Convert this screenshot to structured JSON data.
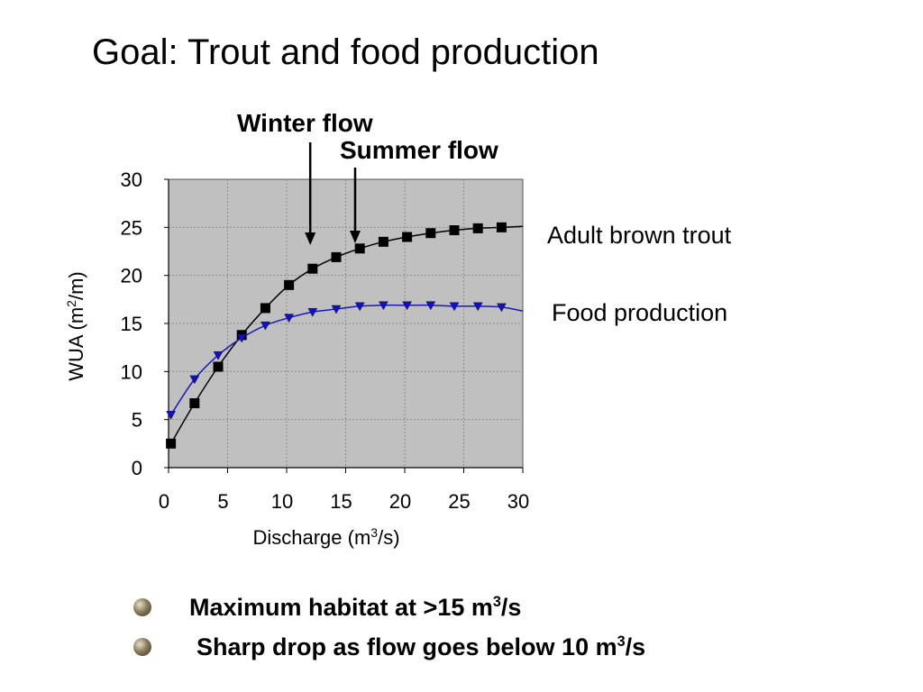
{
  "slide": {
    "title": "Goal: Trout and food production",
    "bullets": [
      {
        "prefix": "Maximum habitat at >15 m",
        "sup": "3",
        "suffix": "/s"
      },
      {
        "prefix": "Sharp drop as flow goes below 10 m",
        "sup": "3",
        "suffix": "/s"
      }
    ]
  },
  "annotations": {
    "winter_flow": {
      "label": "Winter flow",
      "x": 12
    },
    "summer_flow": {
      "label": "Summer flow",
      "x": 15.8
    }
  },
  "colors": {
    "plot_background": "#c0c0c0",
    "trout_series": "#000000",
    "food_series": "#1a1ab4",
    "food_marker": "#1010c8",
    "grid": "#8c8c8c"
  },
  "chart_data": {
    "type": "line",
    "xlabel_prefix": "Discharge (m",
    "xlabel_sup": "3",
    "xlabel_suffix": "/s)",
    "ylabel_prefix": "WUA (m",
    "ylabel_sup": "2",
    "ylabel_suffix": "/m)",
    "xlim": [
      0,
      30
    ],
    "ylim": [
      0,
      30
    ],
    "xticks": [
      "0",
      "5",
      "10",
      "15",
      "20",
      "25",
      "30"
    ],
    "yticks": [
      "0",
      "5",
      "10",
      "15",
      "20",
      "25",
      "30"
    ],
    "grid": true,
    "series": [
      {
        "name": "Adult brown trout",
        "marker": "square",
        "x": [
          0.2,
          2.2,
          4.2,
          6.2,
          8.2,
          10.2,
          12.2,
          14.2,
          16.2,
          18.2,
          20.2,
          22.2,
          24.2,
          26.2,
          28.2
        ],
        "y": [
          2.5,
          6.7,
          10.5,
          13.8,
          16.6,
          19.0,
          20.7,
          21.9,
          22.8,
          23.5,
          24.0,
          24.4,
          24.7,
          24.9,
          25.0
        ],
        "curve_end": [
          30,
          25.1
        ]
      },
      {
        "name": "Food production",
        "marker": "triangle-down",
        "x": [
          0.2,
          2.2,
          4.2,
          6.2,
          8.2,
          10.2,
          12.2,
          14.2,
          16.2,
          18.2,
          20.2,
          22.2,
          24.2,
          26.2,
          28.2
        ],
        "y": [
          5.5,
          9.2,
          11.7,
          13.5,
          14.8,
          15.6,
          16.2,
          16.5,
          16.8,
          16.9,
          16.9,
          16.9,
          16.8,
          16.8,
          16.7
        ],
        "curve_end": [
          30,
          16.3
        ]
      }
    ]
  }
}
